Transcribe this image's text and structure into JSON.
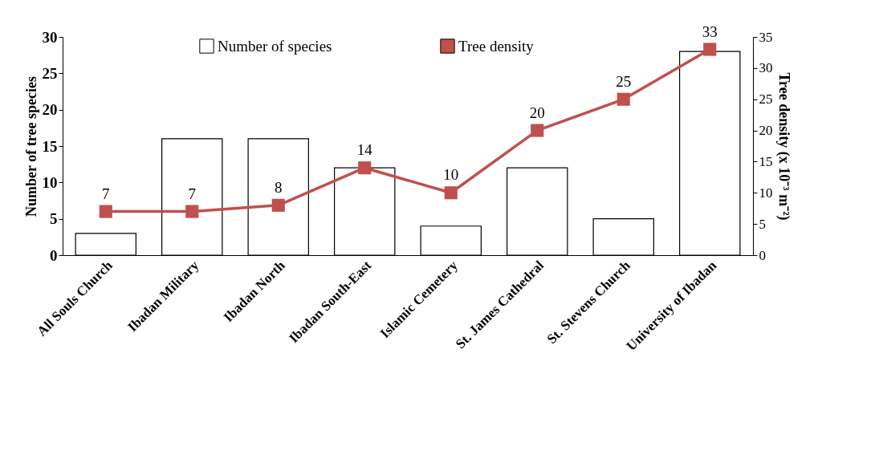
{
  "chart_data": {
    "type": "bar",
    "categories": [
      "All Souls Church",
      "Ibadan Military",
      "Ibadan North",
      "Ibadan South-East",
      "Islamic Cemetery",
      "St. James Cathedral",
      "St. Stevens Church",
      "University of Ibadan"
    ],
    "series": [
      {
        "name": "Number of species",
        "color": "#ffffff",
        "values": [
          3,
          16,
          16,
          12,
          4,
          12,
          5,
          28
        ]
      },
      {
        "name": "Tree density",
        "type": "line",
        "axis": "y2",
        "color": "#c0504d",
        "values": [
          7,
          7,
          8,
          14,
          10,
          20,
          25,
          33
        ],
        "value_labels": [
          "7",
          "7",
          "8",
          "14",
          "10",
          "20",
          "25",
          "33"
        ]
      }
    ],
    "ylabel": "Number of tree species",
    "y2label": "Tree density (x 10⁻³ m⁻²)",
    "ylim": [
      0,
      30
    ],
    "yticks": [
      0,
      5,
      10,
      15,
      20,
      25,
      30
    ],
    "y2lim": [
      0,
      35
    ],
    "y2ticks": [
      0,
      5,
      10,
      15,
      20,
      25,
      30,
      35
    ],
    "grid": false,
    "legend": "top",
    "marker": "square",
    "line_style": "solid"
  }
}
